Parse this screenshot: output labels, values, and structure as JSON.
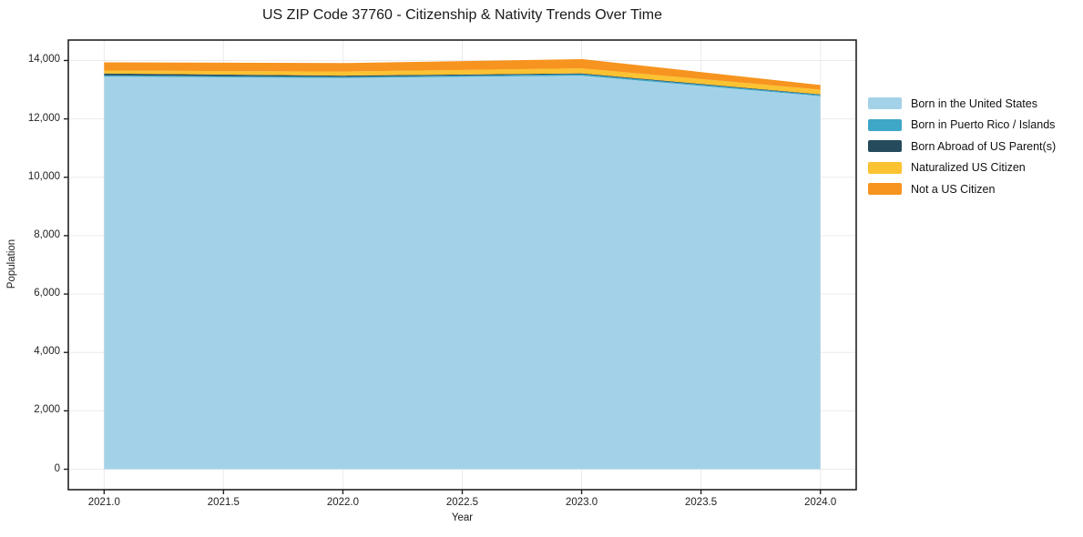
{
  "chart_data": {
    "type": "area",
    "stacked": true,
    "title": "US ZIP Code 37760 - Citizenship & Nativity Trends Over Time",
    "xlabel": "Year",
    "ylabel": "Population",
    "x": [
      2021,
      2022,
      2023,
      2024
    ],
    "series": [
      {
        "name": "Born in the United States",
        "color": "#A3D2E8",
        "values": [
          13450,
          13400,
          13480,
          12780
        ]
      },
      {
        "name": "Born in Puerto Rico / Islands",
        "color": "#3EA6C6",
        "values": [
          45,
          40,
          50,
          40
        ]
      },
      {
        "name": "Born Abroad of US Parent(s)",
        "color": "#254B5C",
        "values": [
          60,
          40,
          30,
          20
        ]
      },
      {
        "name": "Naturalized US Citizen",
        "color": "#FBC231",
        "values": [
          100,
          140,
          170,
          160
        ]
      },
      {
        "name": "Not a US Citizen",
        "color": "#F7941F",
        "values": [
          280,
          290,
          320,
          160
        ]
      }
    ],
    "totals": [
      13935,
      13910,
      14050,
      13160
    ],
    "xticks": [
      2021.0,
      2021.5,
      2022.0,
      2022.5,
      2023.0,
      2023.5,
      2024.0
    ],
    "xtick_labels": [
      "2021.0",
      "2021.5",
      "2022.0",
      "2022.5",
      "2023.0",
      "2023.5",
      "2024.0"
    ],
    "yticks": [
      0,
      2000,
      4000,
      6000,
      8000,
      10000,
      12000,
      14000
    ],
    "ytick_labels": [
      "0",
      "2,000",
      "4,000",
      "6,000",
      "8,000",
      "10,000",
      "12,000",
      "14,000"
    ],
    "xlim": [
      2020.85,
      2024.15
    ],
    "ylim": [
      -700,
      14700
    ],
    "grid": true,
    "grid_color": "#ebebeb",
    "axis_color": "#222222",
    "background_color": "#ffffff",
    "legend_position": "right-outside-top"
  }
}
